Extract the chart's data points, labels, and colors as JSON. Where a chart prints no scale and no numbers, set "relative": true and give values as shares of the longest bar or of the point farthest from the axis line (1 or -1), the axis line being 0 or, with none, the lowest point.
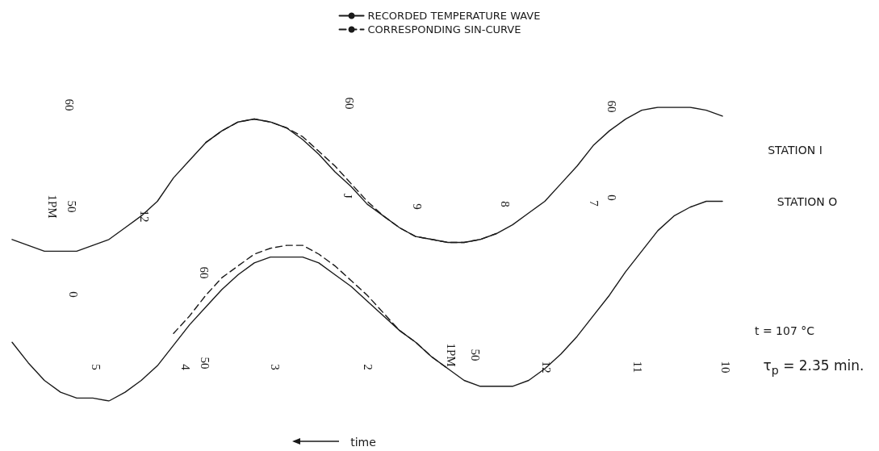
{
  "chart_data": {
    "type": "line",
    "relative": true,
    "legend": "top",
    "categories": [
      null,
      null,
      null,
      null,
      null,
      null,
      null,
      null,
      null,
      null,
      null,
      null,
      null,
      null,
      null,
      null,
      null,
      null,
      null,
      null,
      null,
      null,
      null,
      null,
      null,
      null,
      null,
      null,
      null,
      null,
      null,
      null,
      null,
      null,
      null,
      null,
      null,
      null,
      null,
      null,
      null,
      null,
      null,
      null,
      null
    ],
    "series": [
      {
        "name": "RECORDED TEMPERATURE WAVE",
        "color": "#1a1a1a",
        "line_style": "solid",
        "values": [
          0.55,
          0.53,
          0.51,
          0.51,
          0.51,
          0.53,
          0.55,
          0.59,
          0.63,
          0.68,
          0.76,
          0.82,
          0.88,
          0.92,
          0.95,
          0.96,
          0.95,
          0.93,
          0.89,
          0.84,
          0.78,
          0.73,
          0.67,
          0.63,
          0.59,
          0.56,
          0.55,
          0.54,
          0.54,
          0.55,
          0.57,
          0.6,
          0.64,
          0.68,
          0.74,
          0.8,
          0.87,
          0.92,
          0.96,
          0.99,
          1,
          1,
          1,
          0.99,
          0.97
        ]
      },
      {
        "name": "CORRESPONDING SIN-CURVE",
        "color": "#1a1a1a",
        "line_style": "dashed",
        "values": [
          null,
          null,
          null,
          null,
          null,
          null,
          null,
          null,
          null,
          null,
          null,
          null,
          0.88,
          0.92,
          0.95,
          0.96,
          0.95,
          0.93,
          0.9,
          0.85,
          0.8,
          0.74,
          0.68,
          0.63,
          0.59,
          0.56,
          0.55,
          0.54,
          0.54,
          0.55,
          0.57,
          null,
          null,
          null,
          null,
          null,
          null,
          null,
          null,
          null,
          null,
          null,
          null,
          null,
          null
        ]
      },
      {
        "color": "#1a1a1a",
        "line_style": "solid",
        "values": [
          0.2,
          0.13,
          0.07,
          0.03,
          0.01,
          0.01,
          0,
          0.03,
          0.07,
          0.12,
          0.19,
          0.26,
          0.32,
          0.38,
          0.43,
          0.47,
          0.49,
          0.49,
          0.49,
          0.47,
          0.43,
          0.39,
          0.34,
          0.29,
          0.24,
          0.2,
          0.15,
          0.11,
          0.07,
          0.05,
          0.05,
          0.05,
          0.07,
          0.11,
          0.16,
          0.22,
          0.29,
          0.36,
          0.44,
          0.51,
          0.58,
          0.63,
          0.66,
          0.68,
          0.68
        ]
      },
      {
        "color": "#1a1a1a",
        "line_style": "dashed",
        "values": [
          null,
          null,
          null,
          null,
          null,
          null,
          null,
          null,
          null,
          null,
          0.23,
          0.29,
          0.36,
          0.42,
          0.46,
          0.5,
          0.52,
          0.53,
          0.53,
          0.5,
          0.46,
          0.41,
          0.36,
          0.3,
          0.24,
          0.2,
          0.15,
          0.11,
          null,
          null,
          null,
          null,
          null,
          null,
          null,
          null,
          null,
          null,
          null,
          null,
          null,
          null,
          null,
          null,
          null
        ]
      }
    ],
    "annotations": [
      "STATION I",
      "STATION O",
      "t = 107 °C",
      "τ$_{p}$ = 2.35 min.",
      "time",
      "60",
      "1PM",
      "50",
      "12",
      "60",
      "J",
      "9",
      "8",
      "60",
      "7",
      "0",
      "0",
      "60",
      "5",
      "4",
      "50",
      "3",
      "2",
      "1PM",
      "50",
      "12",
      "11",
      "10"
    ]
  }
}
